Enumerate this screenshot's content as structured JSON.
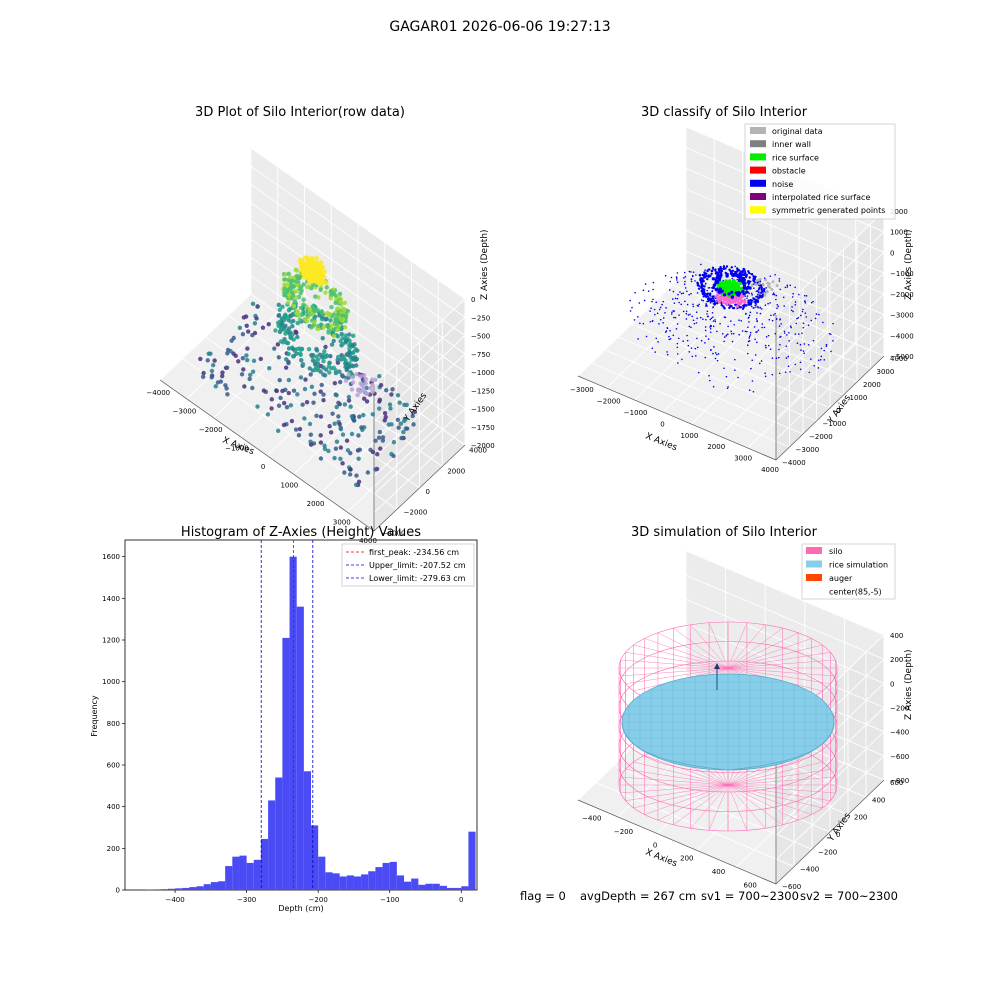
{
  "figure": {
    "title": "GAGAR01 2026-06-06 19:27:13"
  },
  "colors": {
    "grey_data": "#b4b4b4",
    "inner_wall": "#808080",
    "rice_surface": "#00ee00",
    "obstacle": "#ff0000",
    "noise": "#0000ee",
    "interp": "#800080",
    "symmetric": "#ffff00",
    "hist_bar": "#4b4bf5",
    "peak_line": "#dd0000",
    "limit_line": "#0000cc",
    "silo": "#ff69b4",
    "rice_sim": "#87ceeb",
    "auger": "#ff4500",
    "pane": "#ececec"
  },
  "chart_data": [
    {
      "type": "scatter",
      "title": "3D Plot of Silo Interior(row data)",
      "xlabel": "X Axies",
      "ylabel": "Y Axies",
      "zlabel": "Z Axies (Depth)",
      "x_ticks": [
        "−4000",
        "−3000",
        "−2000",
        "−1000",
        "0",
        "1000",
        "2000",
        "3000",
        "4000"
      ],
      "y_ticks": [
        "−4000",
        "−2000",
        "0",
        "2000",
        "4000"
      ],
      "z_ticks": [
        "−2000",
        "−1750",
        "−1500",
        "−1250",
        "−1000",
        "−750",
        "−500",
        "−250",
        "0"
      ],
      "xlim": [
        -4000,
        4000
      ],
      "ylim": [
        -4000,
        4000
      ],
      "zlim": [
        -2000,
        0
      ],
      "colormap": "viridis"
    },
    {
      "type": "scatter",
      "title": "3D classify of Silo Interior",
      "xlabel": "X Axies",
      "ylabel": "Y Axies",
      "zlabel": "Z Axies (Depth)",
      "x_ticks": [
        "−3000",
        "−2000",
        "−1000",
        "0",
        "1000",
        "2000",
        "3000",
        "4000"
      ],
      "y_ticks": [
        "−4000",
        "−3000",
        "−2000",
        "−1000",
        "0",
        "1000",
        "2000",
        "3000",
        "4000"
      ],
      "z_ticks": [
        "−5000",
        "−4000",
        "−3000",
        "−2000",
        "−1000",
        "0",
        "1000",
        "2000"
      ],
      "xlim": [
        -3000,
        4000
      ],
      "ylim": [
        -4000,
        4000
      ],
      "zlim": [
        -5000,
        2000
      ],
      "legend_position": "top-right",
      "legend": [
        {
          "label": "original data",
          "color": "#b4b4b4"
        },
        {
          "label": "inner wall",
          "color": "#808080"
        },
        {
          "label": "rice surface",
          "color": "#00ee00"
        },
        {
          "label": "obstacle",
          "color": "#ff0000"
        },
        {
          "label": "noise",
          "color": "#0000ee"
        },
        {
          "label": "interpolated rice surface",
          "color": "#800080"
        },
        {
          "label": "symmetric generated points",
          "color": "#ffff00"
        }
      ]
    },
    {
      "type": "bar",
      "title": "Histogram of Z-Axies (Height) Values",
      "xlabel": "Depth (cm)",
      "ylabel": "Frequency",
      "xlim": [
        -470,
        22
      ],
      "ylim": [
        0,
        1680
      ],
      "x_ticks": [
        -400,
        -300,
        -200,
        -100,
        0
      ],
      "y_ticks": [
        0,
        200,
        400,
        600,
        800,
        1000,
        1200,
        1400,
        1600
      ],
      "bin_width": 10,
      "bin_start": -440,
      "values": [
        2,
        0,
        4,
        6,
        8,
        10,
        14,
        18,
        28,
        38,
        42,
        115,
        160,
        165,
        130,
        145,
        245,
        430,
        540,
        1210,
        1600,
        1360,
        570,
        310,
        160,
        85,
        80,
        65,
        70,
        65,
        75,
        90,
        110,
        130,
        135,
        70,
        40,
        55,
        25,
        30,
        30,
        20,
        10,
        10,
        18,
        280
      ],
      "peak": -234.56,
      "upper_limit": -207.52,
      "lower_limit": -279.63,
      "legend_position": "top-right",
      "legend": [
        {
          "label": "first_peak: -234.56 cm",
          "color": "#dd0000"
        },
        {
          "label": "Upper_limit: -207.52 cm",
          "color": "#0000cc"
        },
        {
          "label": "Lower_limit: -279.63 cm",
          "color": "#0000cc"
        }
      ]
    },
    {
      "type": "scatter",
      "title": "3D simulation of Silo Interior",
      "xlabel": "X Axies",
      "ylabel": "Y Axies",
      "zlabel": "Z Axies (Depth)",
      "x_ticks": [
        "−400",
        "−200",
        "0",
        "200",
        "400",
        "600"
      ],
      "y_ticks": [
        "−600",
        "−400",
        "−200",
        "0",
        "200",
        "400",
        "600"
      ],
      "z_ticks": [
        "−800",
        "−600",
        "−400",
        "−200",
        "0",
        "200",
        "400"
      ],
      "xlim": [
        -500,
        700
      ],
      "ylim": [
        -700,
        700
      ],
      "zlim": [
        -900,
        450
      ],
      "legend_position": "top-right",
      "legend": [
        {
          "label": "silo",
          "color": "#ff69b4"
        },
        {
          "label": "rice simulation",
          "color": "#87ceeb"
        },
        {
          "label": "auger",
          "color": "#ff4500"
        },
        {
          "label": "center(85,-5)",
          "color": "none"
        }
      ]
    }
  ],
  "status": {
    "flag": "flag = 0",
    "avg_depth": "avgDepth = 267 cm",
    "sv1": "sv1 = 700~2300",
    "sv2": "sv2 = 700~2300"
  }
}
